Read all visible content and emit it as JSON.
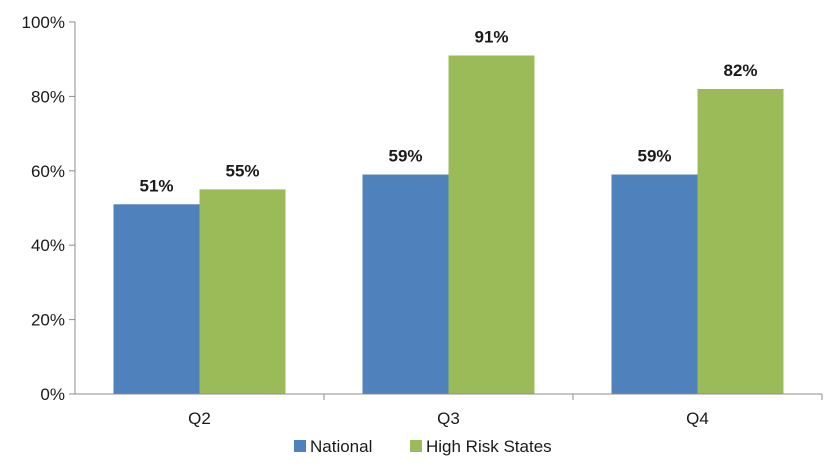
{
  "chart_data": {
    "type": "bar",
    "title": "",
    "xlabel": "",
    "ylabel": "",
    "categories": [
      "Q2",
      "Q3",
      "Q4"
    ],
    "series": [
      {
        "name": "National",
        "color": "#4f81bd",
        "values": [
          51,
          59,
          59
        ],
        "labels": [
          "51%",
          "59%",
          "59%"
        ]
      },
      {
        "name": "High Risk States",
        "color": "#9bbb59",
        "values": [
          55,
          91,
          82
        ],
        "labels": [
          "55%",
          "91%",
          "82%"
        ]
      }
    ],
    "ylim": [
      0,
      100
    ],
    "yticks": [
      0,
      20,
      40,
      60,
      80,
      100
    ],
    "ytick_labels": [
      "0%",
      "20%",
      "40%",
      "60%",
      "80%",
      "100%"
    ],
    "grid": false,
    "legend_position": "bottom"
  }
}
